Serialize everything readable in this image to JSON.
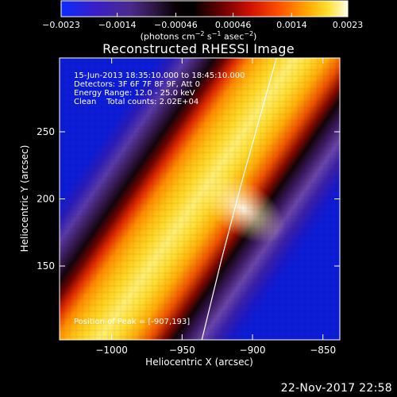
{
  "chart_data": {
    "type": "heatmap",
    "title": "Reconstructed RHESSI Image",
    "xlabel": "Heliocentric X (arcsec)",
    "ylabel": "Heliocentric Y (arcsec)",
    "xlim": [
      -1037,
      -838
    ],
    "ylim": [
      95,
      305
    ],
    "x_ticks": [
      {
        "value": -1000,
        "label": "−1000"
      },
      {
        "value": -950,
        "label": "−950"
      },
      {
        "value": -900,
        "label": "−900"
      },
      {
        "value": -850,
        "label": "−850"
      }
    ],
    "y_ticks": [
      {
        "value": 150,
        "label": "150"
      },
      {
        "value": 200,
        "label": "200"
      },
      {
        "value": 250,
        "label": "250"
      }
    ],
    "colorbar": {
      "range": [
        -0.0023,
        0.0023
      ],
      "tick_labels": [
        "−0.0023",
        "−0.0014",
        "−0.00046",
        "0.00046",
        "0.0014",
        "0.0023"
      ],
      "label_main": "(photons cm",
      "label_exp1": "−2",
      "label_mid1": " s",
      "label_exp2": "−1",
      "label_mid2": " asec",
      "label_exp3": "−2",
      "label_end": ")"
    },
    "annotations": {
      "time_range": "15-Jun-2013 18:35:10.000 to 18:45:10.000",
      "detectors": "Detectors: 3F 6F 7F 8F 9F, Att 0",
      "energy": "Energy Range: 12.0 - 25.0 keV",
      "clean": "Clean    Total counts: 2.02E+04",
      "peak": "Position of Peak = [-907,193]"
    },
    "peak": [
      -907,
      193
    ],
    "limb_curve": [
      [
        -936,
        95
      ],
      [
        -922,
        155
      ],
      [
        -907,
        215
      ],
      [
        -891,
        275
      ],
      [
        -883,
        305
      ]
    ]
  },
  "footer": {
    "timestamp": "22-Nov-2017 22:58"
  }
}
